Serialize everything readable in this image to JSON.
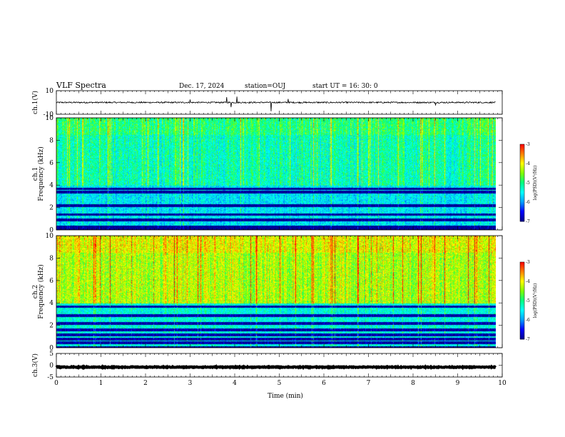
{
  "header": {
    "title": "VLF Spectra",
    "date": "Dec. 17, 2024",
    "station": "station=OUJ",
    "start_ut": "start  UT =   16: 30: 0"
  },
  "chart_data": {
    "type": "heatmap",
    "xlabel": "Time  (min)",
    "xlim": [
      0,
      10
    ],
    "x_ticks": [
      "0",
      "1",
      "2",
      "3",
      "4",
      "5",
      "6",
      "7",
      "8",
      "9",
      "10"
    ],
    "data_extent_min": 9.85,
    "panels": [
      {
        "name": "ch1-waveform",
        "kind": "line",
        "ylabel": "ch.1(V)",
        "ylim": [
          -10,
          10
        ],
        "y_ticks": [
          "10",
          "-10"
        ],
        "baseline": 0,
        "noise_amplitude": 1.2,
        "spikes": [
          {
            "t": 3.0,
            "v": 2.5
          },
          {
            "t": 3.82,
            "v": 4.5
          },
          {
            "t": 3.92,
            "v": -4.0
          },
          {
            "t": 4.05,
            "v": 5.0
          },
          {
            "t": 4.82,
            "v": -7.5
          },
          {
            "t": 5.2,
            "v": 3.0
          },
          {
            "t": 8.5,
            "v": -2.5
          }
        ]
      },
      {
        "name": "ch1-spectrogram",
        "kind": "spectrogram",
        "ylabel_line1": "ch.1",
        "ylabel_line2": "Frequency  (kHz)",
        "ylim": [
          0,
          10
        ],
        "y_ticks": [
          "0",
          "2",
          "4",
          "6",
          "8",
          "10"
        ],
        "upper_band_level": -5.2,
        "lower_band_level": -5.6,
        "dark_bands_khz": [
          3.7,
          3.4,
          2.2,
          1.4,
          0.9,
          0.3
        ]
      },
      {
        "name": "ch2-spectrogram",
        "kind": "spectrogram",
        "ylabel_line1": "ch.2",
        "ylabel_line2": "Frequency  (kHz)",
        "ylim": [
          0,
          10
        ],
        "y_ticks": [
          "0",
          "2",
          "4",
          "6",
          "8",
          "10"
        ],
        "upper_band_level": -4.3,
        "lower_band_level": -5.4,
        "dark_bands_khz": [
          3.7,
          2.9,
          2.2,
          1.6,
          1.2,
          0.8,
          0.5
        ]
      },
      {
        "name": "ch3-waveform",
        "kind": "line",
        "ylabel": "ch.3(V)",
        "ylim": [
          -5,
          5
        ],
        "y_ticks": [
          "5",
          "0",
          "-5"
        ],
        "baseline": -0.8,
        "noise_amplitude": 0.35,
        "spikes": []
      }
    ],
    "colorbar": {
      "label": "log(PSD)(V²/Hz)",
      "range": [
        -7,
        -3
      ],
      "ticks": [
        "-3",
        "-4",
        "-5",
        "-6",
        "-7"
      ],
      "colors": [
        "#00008f",
        "#0000ff",
        "#00a0ff",
        "#00ffff",
        "#00ff80",
        "#80ff00",
        "#ffff00",
        "#ff8000",
        "#ff0000",
        "#ffffff"
      ]
    }
  }
}
